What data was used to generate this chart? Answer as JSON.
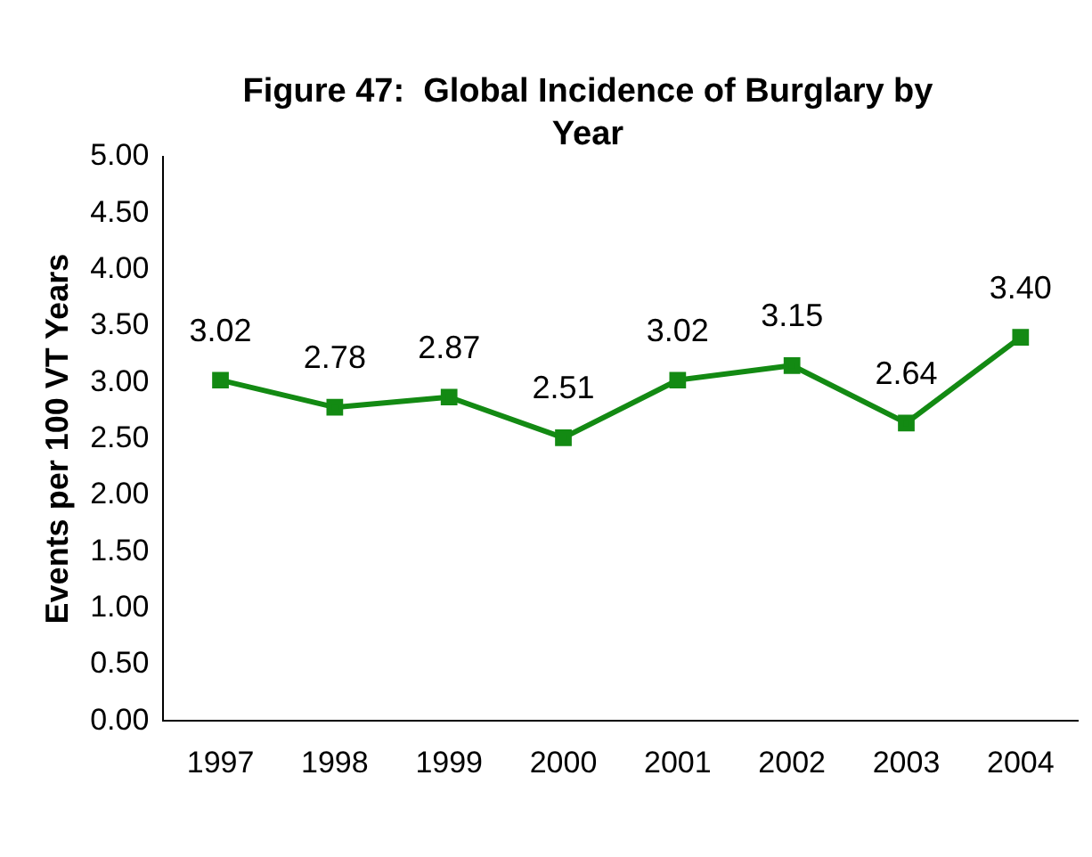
{
  "chart_data": {
    "type": "line",
    "title": "Figure 47:  Global Incidence of Burglary by Year",
    "ylabel": "Events per 100 VT Years",
    "categories": [
      "1997",
      "1998",
      "1999",
      "2000",
      "2001",
      "2002",
      "2003",
      "2004"
    ],
    "series": [
      {
        "color": "#138a13",
        "values": [
          3.02,
          2.78,
          2.87,
          2.51,
          3.02,
          3.15,
          2.64,
          3.4
        ],
        "value_labels": [
          "3.02",
          "2.78",
          "2.87",
          "2.51",
          "3.02",
          "3.15",
          "2.64",
          "3.40"
        ]
      }
    ],
    "ylim": [
      0,
      5
    ],
    "yticks": [
      {
        "value": 0,
        "label": "0.00"
      },
      {
        "value": 0.5,
        "label": "0.50"
      },
      {
        "value": 1,
        "label": "1.00"
      },
      {
        "value": 1.5,
        "label": "1.50"
      },
      {
        "value": 2,
        "label": "2.00"
      },
      {
        "value": 2.5,
        "label": "2.50"
      },
      {
        "value": 3,
        "label": "3.00"
      },
      {
        "value": 3.5,
        "label": "3.50"
      },
      {
        "value": 4,
        "label": "4.00"
      },
      {
        "value": 4.5,
        "label": "4.50"
      },
      {
        "value": 5,
        "label": "5.00"
      }
    ],
    "grid": false,
    "legend": false,
    "marker": "square",
    "line_style": "solid"
  }
}
